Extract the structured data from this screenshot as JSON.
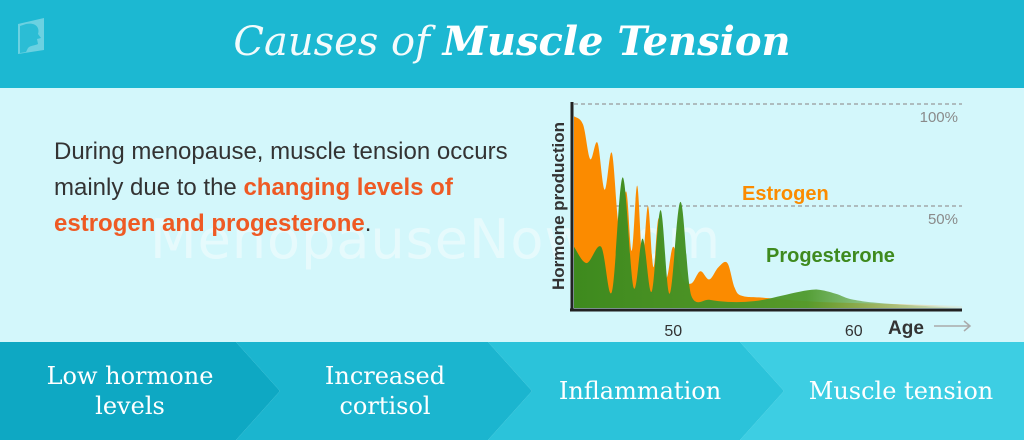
{
  "header": {
    "title_light": "Causes of",
    "title_bold": "Muscle Tension",
    "logo_icon": "profile-face-logo-icon"
  },
  "watermark": "MenopauseNow.com",
  "intro": {
    "text_before": "During menopause, muscle tension occurs mainly due to the ",
    "highlight": "changing levels of estrogen and progesterone",
    "text_after": "."
  },
  "chart_data": {
    "type": "area",
    "ylabel": "Hormone production",
    "xlabel": "Age",
    "x_ticks": [
      "50",
      "60"
    ],
    "y_ticks": [
      "100%",
      "50%"
    ],
    "series": [
      {
        "name": "Estrogen",
        "color": "#fb8b00",
        "x": [
          44.5,
          45,
          45.4,
          45.8,
          46.2,
          46.6,
          47.0,
          47.4,
          47.7,
          48.0,
          48.3,
          48.6,
          48.9,
          49.2,
          49.6,
          50.0,
          50.5,
          51.0,
          51.5,
          52.0,
          52.5,
          53.0,
          53.4,
          53.8,
          55.0,
          58.0,
          62.0,
          66.0
        ],
        "values": [
          94,
          90,
          73,
          81,
          58,
          76,
          40,
          57,
          28,
          60,
          24,
          50,
          20,
          44,
          15,
          30,
          15,
          12,
          18,
          14,
          20,
          22,
          10,
          6,
          5,
          3,
          2,
          1
        ]
      },
      {
        "name": "Progesterone",
        "color": "#3e8a1e",
        "x": [
          44.5,
          45.2,
          46.0,
          46.6,
          47.2,
          47.8,
          48.3,
          48.8,
          49.3,
          49.8,
          50.4,
          51.0,
          52.0,
          53.0,
          54.0,
          55.0,
          56.0,
          57.0,
          58.0,
          59.0,
          60.0,
          62.0,
          66.0
        ],
        "values": [
          30,
          22,
          30,
          8,
          64,
          10,
          34,
          8,
          48,
          7,
          52,
          6,
          4,
          3,
          3,
          4,
          6,
          8,
          9,
          7,
          4,
          2,
          0
        ]
      }
    ],
    "xlim": [
      44.5,
      66
    ],
    "ylim": [
      0,
      100
    ],
    "reference_lines": [
      100,
      50
    ]
  },
  "steps": [
    {
      "label": "Low hormone levels",
      "color": "#0ea8c3"
    },
    {
      "label": "Increased cortisol",
      "color": "#1bb5cf"
    },
    {
      "label": "Inflammation",
      "color": "#2bc3da"
    },
    {
      "label": "Muscle tension",
      "color": "#3dcee3"
    }
  ]
}
